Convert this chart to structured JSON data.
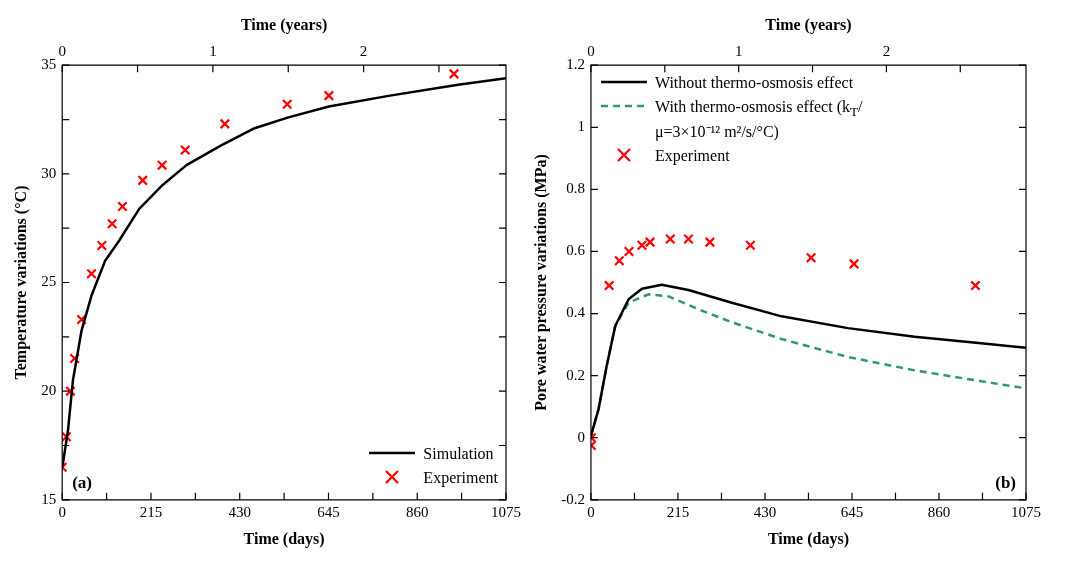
{
  "chart_data": [
    {
      "type": "line",
      "xlabel": "Time (days)",
      "x2label": "Time (years)",
      "ylabel": "Temperature variations (°C)",
      "xlim": [
        0,
        1075
      ],
      "xticks": [
        0,
        {
          "value": 107.5,
          "label": null
        },
        215,
        {
          "value": 322.5,
          "label": null
        },
        430,
        {
          "value": 537.5,
          "label": null
        },
        645,
        {
          "value": 752.5,
          "label": null
        },
        860,
        {
          "value": 967.5,
          "label": null
        },
        1075
      ],
      "x2lim": [
        0,
        2.945
      ],
      "x2ticks": [
        0,
        {
          "value": 0.5,
          "label": null
        },
        1,
        {
          "value": 1.5,
          "label": null
        },
        2,
        {
          "value": 2.5,
          "label": null
        }
      ],
      "ylim": [
        15,
        35
      ],
      "yticks": [
        15,
        {
          "value": 17.5,
          "label": null
        },
        20,
        {
          "value": 22.5,
          "label": null
        },
        25,
        {
          "value": 27.5,
          "label": null
        },
        30,
        {
          "value": 32.5,
          "label": null
        },
        35
      ],
      "grid": false,
      "legend": "bottom right",
      "annotations": [
        "(a)"
      ],
      "series": [
        {
          "name": "Simulation",
          "type": "line",
          "color": "#000000",
          "line_style": "solid",
          "marker": "none",
          "x": [
            0,
            2,
            14,
            26,
            47,
            71,
            104,
            137,
            187,
            244,
            301,
            384,
            466,
            548,
            646,
            794,
            959,
            1075
          ],
          "values": [
            16.5,
            16.7,
            18.2,
            20.5,
            22.8,
            24.4,
            26.0,
            26.9,
            28.4,
            29.5,
            30.4,
            31.3,
            32.1,
            32.6,
            33.1,
            33.6,
            34.1,
            34.4
          ]
        },
        {
          "name": "Experiment",
          "type": "scatter",
          "color": "#ff0000",
          "marker": "cross",
          "x": [
            0,
            10,
            20,
            30,
            47,
            71,
            96,
            121,
            146,
            195,
            242,
            298,
            394,
            545,
            646,
            949
          ],
          "values": [
            16.5,
            17.9,
            20.0,
            21.5,
            23.3,
            25.4,
            26.7,
            27.7,
            28.5,
            29.7,
            30.4,
            31.1,
            32.3,
            33.2,
            33.6,
            34.6
          ]
        }
      ]
    },
    {
      "type": "line",
      "xlabel": "Time (days)",
      "x2label": "Time (years)",
      "ylabel": "Pore water pressure variations (MPa)",
      "xlim": [
        0,
        1075
      ],
      "xticks": [
        0,
        {
          "value": 107.5,
          "label": null
        },
        215,
        {
          "value": 322.5,
          "label": null
        },
        430,
        {
          "value": 537.5,
          "label": null
        },
        645,
        {
          "value": 752.5,
          "label": null
        },
        860,
        {
          "value": 967.5,
          "label": null
        },
        1075
      ],
      "x2lim": [
        0,
        2.945
      ],
      "x2ticks": [
        0,
        {
          "value": 0.5,
          "label": null
        },
        1,
        {
          "value": 1.5,
          "label": null
        },
        2,
        {
          "value": 2.5,
          "label": null
        }
      ],
      "ylim": [
        -0.2,
        1.2
      ],
      "yticks": [
        -0.2,
        0,
        0.2,
        0.4,
        0.6,
        0.8,
        1,
        1.2
      ],
      "grid": false,
      "legend": "top left",
      "annotations": [
        "(b)"
      ],
      "series": [
        {
          "name": "Without thermo-osmosis effect",
          "type": "line",
          "color": "#000000",
          "line_style": "solid",
          "marker": "none",
          "x": [
            0,
            19,
            39,
            60,
            93,
            126,
            175,
            241,
            348,
            471,
            635,
            800,
            964,
            1075
          ],
          "values": [
            0.006,
            0.093,
            0.232,
            0.36,
            0.446,
            0.48,
            0.493,
            0.476,
            0.435,
            0.391,
            0.353,
            0.325,
            0.304,
            0.29
          ]
        },
        {
          "name": "With thermo-osmosis effect (k$_{T}$/μ=3×10⁻¹² m²/s/°C)",
          "type": "line",
          "color": "#2e9a6a",
          "line_style": "dashed",
          "marker": "none",
          "x": [
            0,
            19,
            39,
            60,
            93,
            142,
            192,
            265,
            348,
            471,
            635,
            800,
            964,
            1070
          ],
          "values": [
            0.006,
            0.093,
            0.232,
            0.36,
            0.435,
            0.462,
            0.455,
            0.414,
            0.372,
            0.318,
            0.26,
            0.217,
            0.182,
            0.16
          ]
        },
        {
          "name": "Experiment",
          "type": "scatter",
          "color": "#ff0000",
          "marker": "cross",
          "x": [
            1,
            1,
            45,
            70,
            94,
            126,
            146,
            196,
            241,
            294,
            394,
            544,
            650,
            950
          ],
          "values": [
            0.0,
            -0.025,
            0.49,
            0.57,
            0.6,
            0.62,
            0.63,
            0.64,
            0.64,
            0.63,
            0.62,
            0.58,
            0.56,
            0.49
          ]
        }
      ]
    }
  ]
}
